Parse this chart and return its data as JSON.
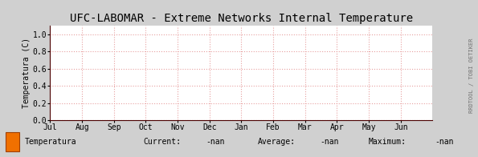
{
  "title": "UFC-LABOMAR - Extreme Networks Internal Temperature",
  "ylabel": "Temperatura (C)",
  "x_labels": [
    "Jul",
    "Aug",
    "Sep",
    "Oct",
    "Nov",
    "Dec",
    "Jan",
    "Feb",
    "Mar",
    "Apr",
    "May",
    "Jun"
  ],
  "ylim": [
    0.0,
    1.1
  ],
  "yticks": [
    0.0,
    0.2,
    0.4,
    0.6,
    0.8,
    1.0
  ],
  "bg_color": "#d0d0d0",
  "plot_bg_color": "#ffffff",
  "grid_color": "#e8a0a0",
  "axis_color": "#4a0000",
  "title_color": "#000000",
  "legend_label": "Temperatura",
  "legend_color": "#f07000",
  "legend_border_color": "#a04000",
  "current_val": "-nan",
  "average_val": "-nan",
  "maximum_val": "-nan",
  "watermark": "RRDTOOL / TOBI OETIKER",
  "title_fontsize": 10,
  "label_fontsize": 7,
  "tick_fontsize": 7,
  "watermark_fontsize": 5
}
